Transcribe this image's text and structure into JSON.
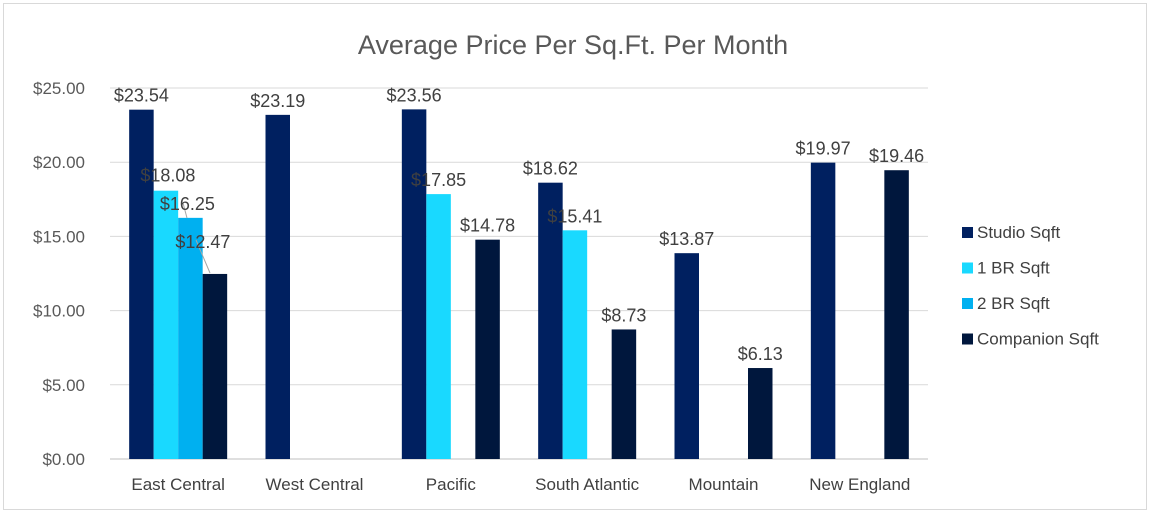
{
  "chart_data": {
    "type": "bar",
    "title": "Average Price Per Sq.Ft. Per Month",
    "xlabel": "",
    "ylabel": "",
    "ylim": [
      0,
      25
    ],
    "yticks": [
      0,
      5,
      10,
      15,
      20,
      25
    ],
    "ytick_labels": [
      "$0.00",
      "$5.00",
      "$10.00",
      "$15.00",
      "$20.00",
      "$25.00"
    ],
    "grid": true,
    "legend_position": "right",
    "categories": [
      "East Central",
      "West Central",
      "Pacific",
      "South Atlantic",
      "Mountain",
      "New England"
    ],
    "series": [
      {
        "name": "Studio Sqft",
        "color": "#002060",
        "values": [
          23.54,
          23.19,
          23.56,
          18.62,
          13.87,
          19.97
        ],
        "labels": [
          "$23.54",
          "$23.19",
          "$23.56",
          "$18.62",
          "$13.87",
          "$19.97"
        ]
      },
      {
        "name": "1 BR Sqft",
        "color": "#19d9ff",
        "values": [
          18.08,
          null,
          17.85,
          15.41,
          null,
          null
        ],
        "labels": [
          "$18.08",
          null,
          "$17.85",
          "$15.41",
          null,
          null
        ]
      },
      {
        "name": "2 BR Sqft",
        "color": "#00b0f0",
        "values": [
          16.25,
          null,
          null,
          null,
          null,
          null
        ],
        "labels": [
          "$16.25",
          null,
          null,
          null,
          null,
          null
        ]
      },
      {
        "name": "Companion Sqft",
        "color": "#00173d",
        "values": [
          12.47,
          null,
          14.78,
          8.73,
          6.13,
          19.46
        ],
        "labels": [
          "$12.47",
          null,
          "$14.78",
          "$8.73",
          "$6.13",
          "$19.46"
        ]
      }
    ]
  }
}
